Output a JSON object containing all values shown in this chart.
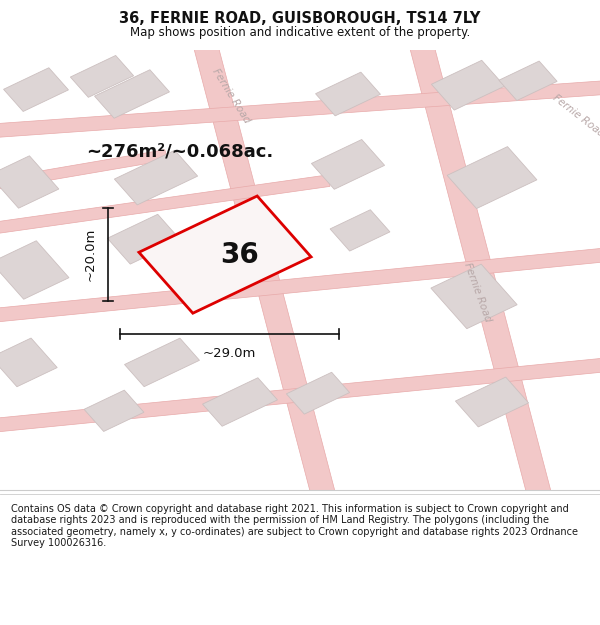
{
  "title": "36, FERNIE ROAD, GUISBOROUGH, TS14 7LY",
  "subtitle": "Map shows position and indicative extent of the property.",
  "footer": "Contains OS data © Crown copyright and database right 2021. This information is subject to Crown copyright and database rights 2023 and is reproduced with the permission of HM Land Registry. The polygons (including the associated geometry, namely x, y co-ordinates) are subject to Crown copyright and database rights 2023 Ordnance Survey 100026316.",
  "area_label": "~276m²/~0.068ac.",
  "number_label": "36",
  "dim_width": "~29.0m",
  "dim_height": "~20.0m",
  "bg_color": "#ffffff",
  "map_bg": "#f7f0f0",
  "road_color": "#f2c8c8",
  "road_stroke": "#e8aaaa",
  "block_fill": "#ddd5d5",
  "block_stroke": "#ccc0c0",
  "plot_fill": "#faf5f5",
  "plot_stroke": "#dd0000",
  "dim_color": "#111111",
  "text_color": "#111111",
  "road_label_color": "#b8a8a8",
  "title_fontsize": 10.5,
  "subtitle_fontsize": 8.5,
  "footer_fontsize": 7.0,
  "area_fontsize": 13,
  "number_fontsize": 20,
  "dim_fontsize": 9.5,
  "road_label_fontsize": 7.5
}
